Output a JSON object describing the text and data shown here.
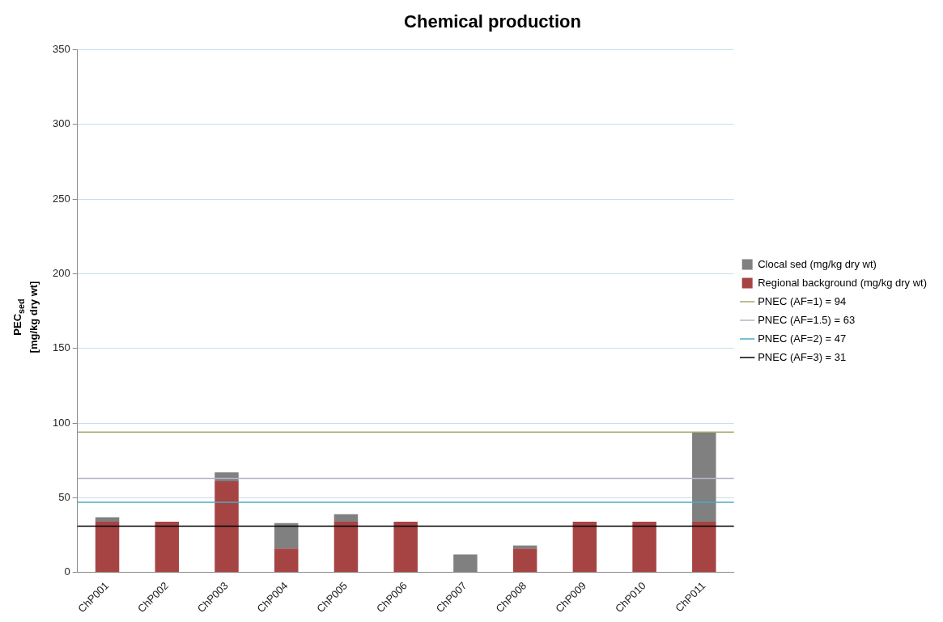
{
  "chart_data": {
    "type": "bar",
    "title": "Chemical production",
    "ylabel": "PEC$_{sed}$\n[mg/kg dry wt]",
    "categories": [
      "ChP001",
      "ChP002",
      "ChP003",
      "ChP004",
      "ChP005",
      "ChP006",
      "ChP007",
      "ChP008",
      "ChP009",
      "ChP010",
      "ChP011"
    ],
    "stacked": true,
    "series": [
      {
        "name": "Regional background (mg/kg dry wt)",
        "color": "#a64444",
        "values": [
          34,
          34,
          61,
          16,
          34,
          34,
          0,
          16,
          34,
          34,
          34
        ]
      },
      {
        "name": "Clocal sed (mg/kg dry wt)",
        "color": "#808080",
        "values": [
          3,
          0,
          6,
          17,
          5,
          0,
          12,
          2,
          0,
          0,
          60
        ]
      }
    ],
    "ylim": [
      0,
      350
    ],
    "yticks": [
      0,
      50,
      100,
      150,
      200,
      250,
      300,
      350
    ],
    "grid": "y",
    "legend": "right",
    "ref_lines": [
      {
        "axis": "y",
        "value": 94,
        "label": "PNEC (AF=1) = 94",
        "color": "#a9a86a"
      },
      {
        "axis": "y",
        "value": 63,
        "label": "PNEC (AF=1.5) = 63",
        "color": "#b4b4c8"
      },
      {
        "axis": "y",
        "value": 47,
        "label": "PNEC (AF=2) = 47",
        "color": "#4bacc6"
      },
      {
        "axis": "y",
        "value": 31,
        "label": "PNEC (AF=3) = 31",
        "color": "#000000"
      }
    ]
  }
}
